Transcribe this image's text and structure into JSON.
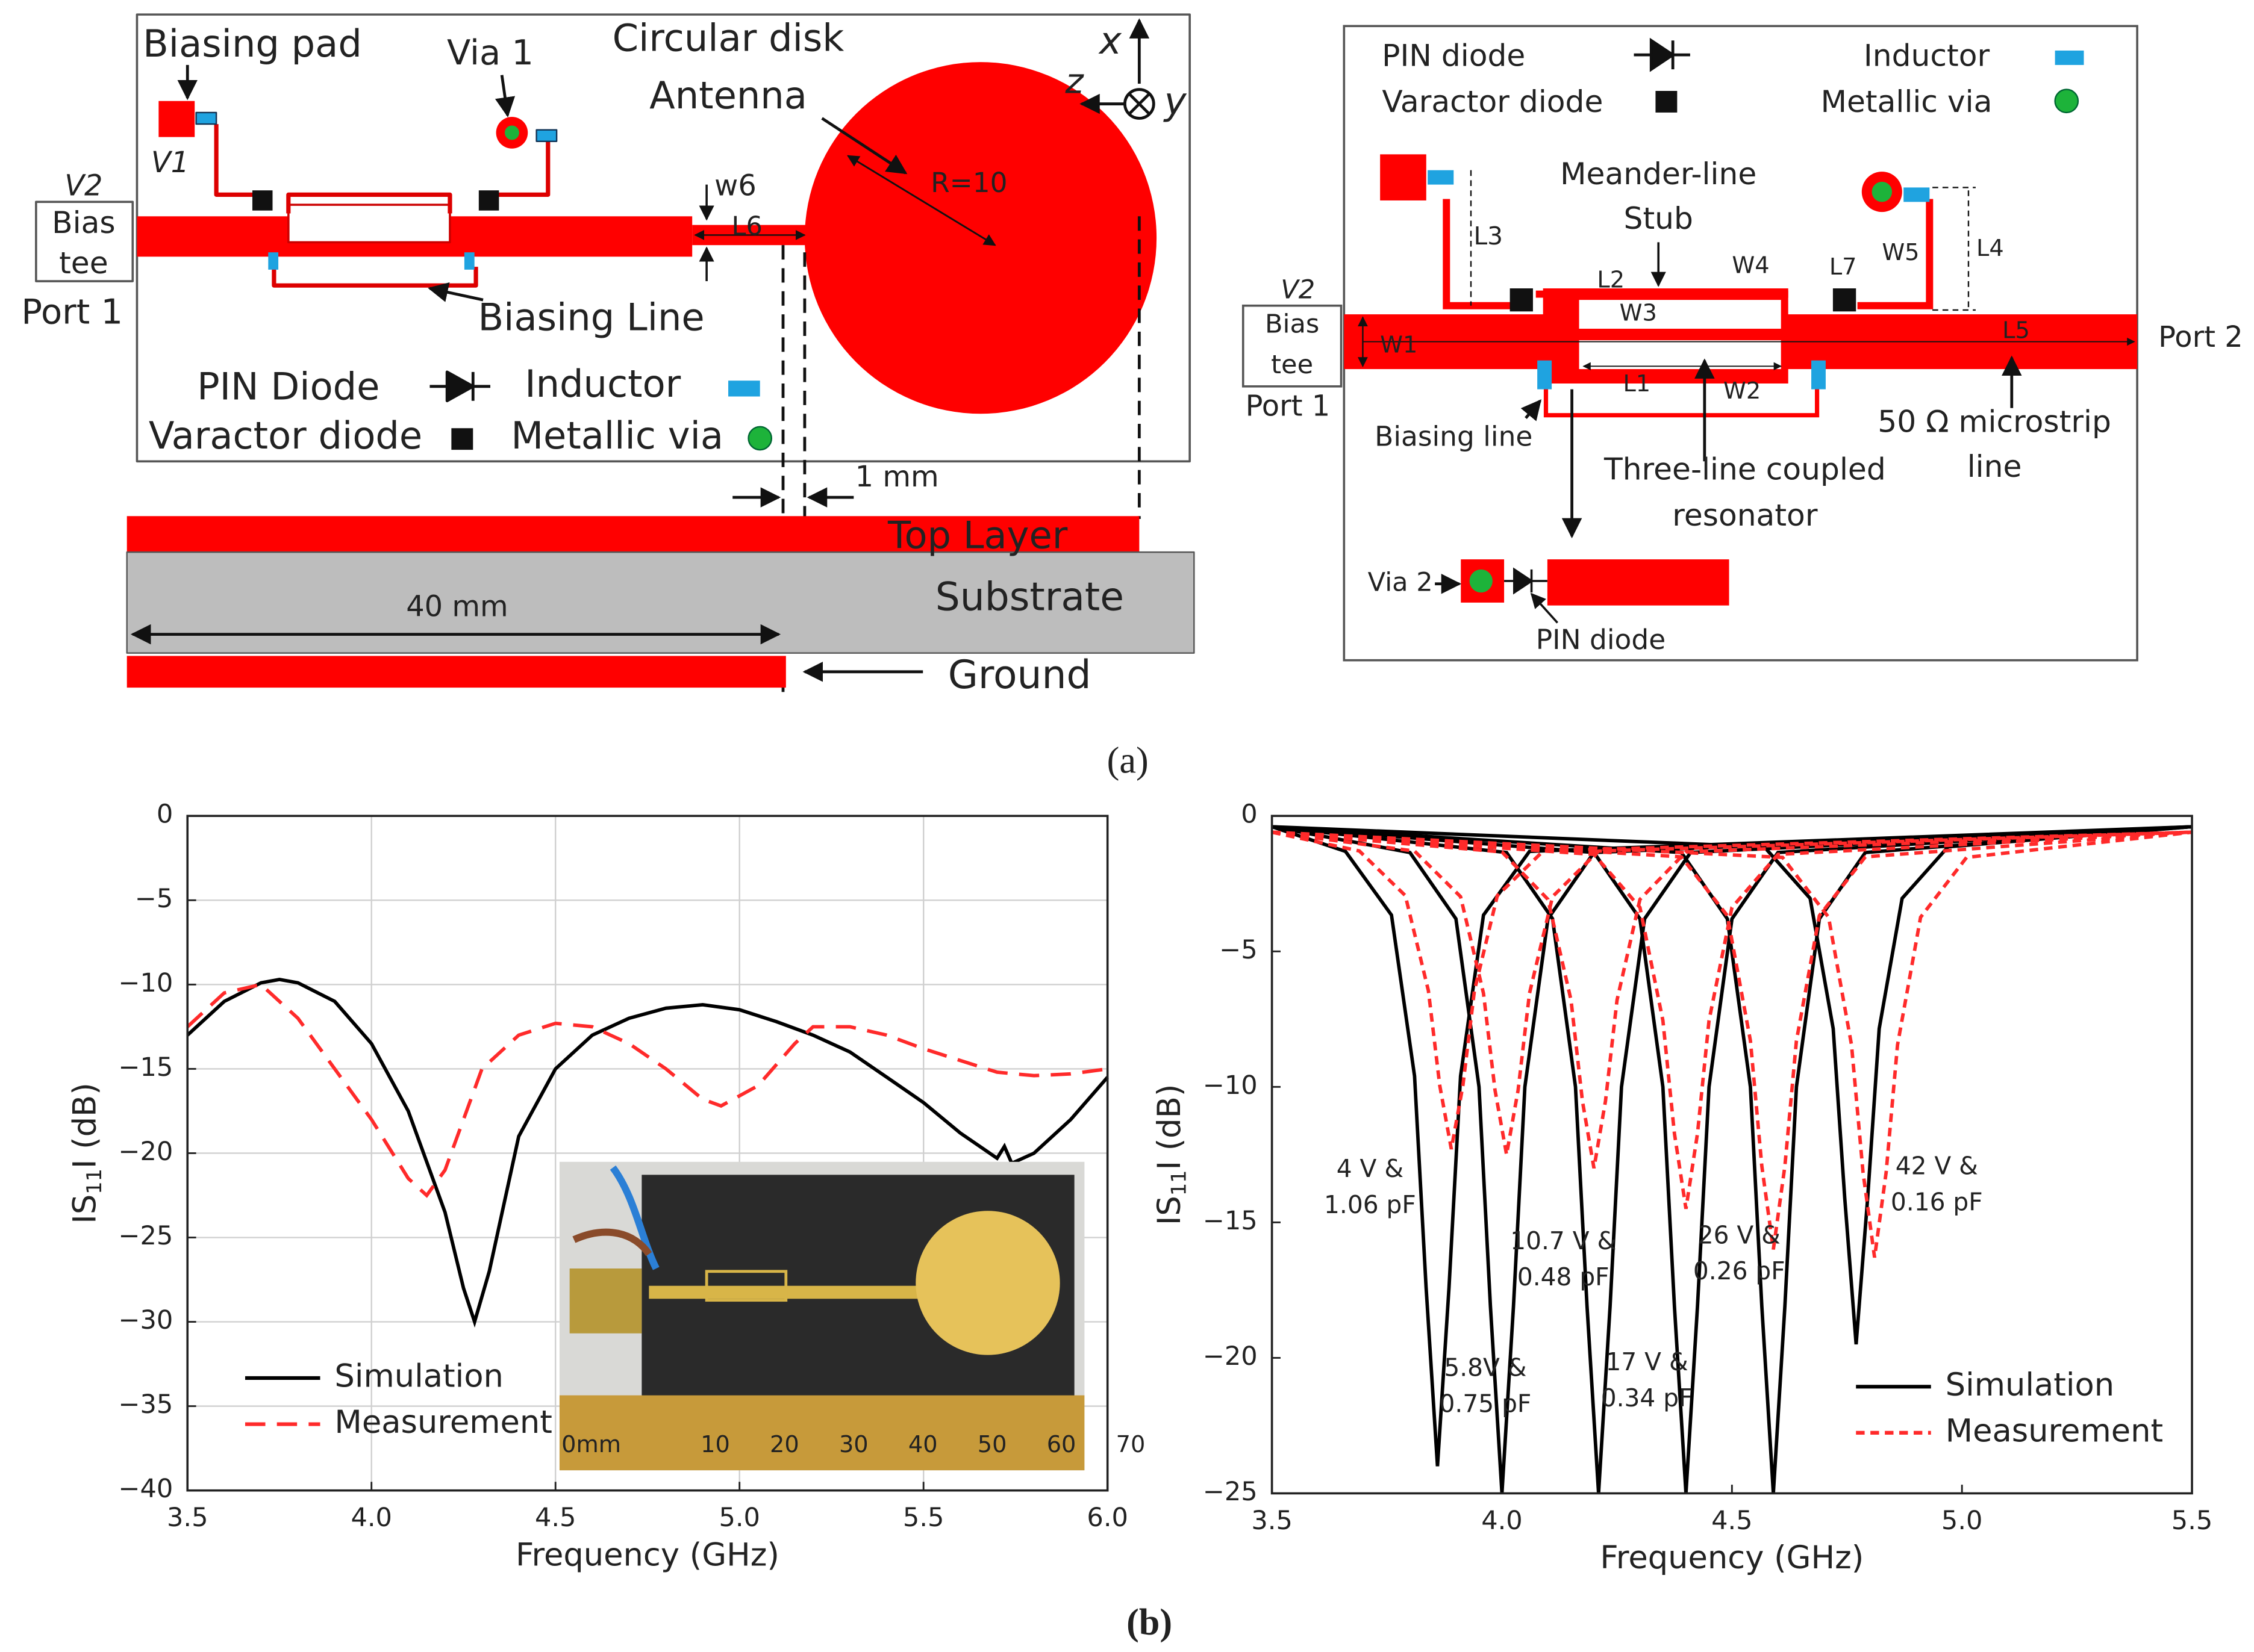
{
  "panel_a": {
    "label": "(a)",
    "left": {
      "biasing_pad": "Biasing pad",
      "via_1": "Via 1",
      "circular_disk": "Circular disk",
      "antenna": "Antenna",
      "axis_x": "x",
      "axis_z": "z",
      "axis_y": "y",
      "v1": "V1",
      "v2": "V2",
      "bias": "Bias",
      "tee": "tee",
      "port_1": "Port 1",
      "w6": "w6",
      "l6": "L6",
      "r": "R=10",
      "biasing_line": "Biasing Line",
      "pin_diode": "PIN Diode",
      "inductor": "Inductor",
      "varactor_diode": "Varactor diode",
      "metallic_via": "Metallic via",
      "one_mm": "1 mm",
      "top_layer": "Top Layer",
      "substrate": "Substrate",
      "forty_mm": "40 mm",
      "ground": "Ground"
    },
    "right": {
      "pin_diode": "PIN diode",
      "varactor_diode": "Varactor diode",
      "inductor": "Inductor",
      "metallic_via": "Metallic via",
      "meander_line": "Meander-line",
      "stub": "Stub",
      "l3": "L3",
      "l2": "L2",
      "w4": "W4",
      "l7": "L7",
      "w5": "W5",
      "l4": "L4",
      "w3": "W3",
      "w1": "W1",
      "l5": "L5",
      "l1": "L1",
      "w2": "W2",
      "v2": "V2",
      "bias": "Bias",
      "tee": "tee",
      "port_1": "Port 1",
      "port_2": "Port 2",
      "biasing_line": "Biasing line",
      "three_line": "Three-line coupled",
      "resonator": "resonator",
      "microstrip_50": "50 Ω microstrip",
      "line": "line",
      "via_2": "Via 2",
      "pin_diode_2": "PIN diode"
    }
  },
  "panel_b_label": "(b)",
  "inset": {
    "ruler_labels": [
      "0mm",
      "10",
      "20",
      "30",
      "40",
      "50",
      "60",
      "70"
    ]
  },
  "chart_data": [
    {
      "type": "line",
      "x_label": "Frequency (GHz)",
      "y_label": {
        "main": "IS",
        "sub": "11",
        "tail": "I (dB)"
      },
      "xlim": [
        3.5,
        6.0
      ],
      "ylim": [
        -40,
        0
      ],
      "xticks": [
        3.5,
        {
          "value": 4.0,
          "label": "4.0"
        },
        4.5,
        {
          "value": 5.0,
          "label": "5.0"
        },
        5.5,
        {
          "value": 6.0,
          "label": "6.0"
        }
      ],
      "yticks": [
        0,
        {
          "value": -5,
          "label": "−5"
        },
        {
          "value": -10,
          "label": "−10"
        },
        {
          "value": -15,
          "label": "−15"
        },
        {
          "value": -20,
          "label": "−20"
        },
        {
          "value": -25,
          "label": "−25"
        },
        {
          "value": -30,
          "label": "−30"
        },
        {
          "value": -35,
          "label": "−35"
        },
        {
          "value": -40,
          "label": "−40"
        }
      ],
      "grid": true,
      "legend": "lower left",
      "series": [
        {
          "name": "Simulation",
          "color": "#000000",
          "dash": "none",
          "x": [
            3.5,
            3.6,
            3.7,
            3.75,
            3.8,
            3.9,
            4.0,
            4.1,
            4.2,
            4.25,
            4.28,
            4.32,
            4.4,
            4.5,
            4.6,
            4.7,
            4.8,
            4.9,
            5.0,
            5.1,
            5.2,
            5.3,
            5.4,
            5.5,
            5.6,
            5.7,
            5.72,
            5.74,
            5.8,
            5.9,
            6.0
          ],
          "values": [
            -13,
            -11,
            -9.9,
            -9.7,
            -9.9,
            -11,
            -13.5,
            -17.5,
            -23.5,
            -28,
            -30,
            -27,
            -19,
            -15,
            -13,
            -12,
            -11.4,
            -11.2,
            -11.5,
            -12.2,
            -13,
            -14,
            -15.5,
            -17,
            -18.8,
            -20.3,
            -19.6,
            -20.6,
            -20,
            -18,
            -15.5
          ]
        },
        {
          "name": "Measurement",
          "color": "#ff2a2a",
          "dash": "14 8",
          "x": [
            3.5,
            3.6,
            3.7,
            3.8,
            3.9,
            4.0,
            4.1,
            4.15,
            4.2,
            4.25,
            4.3,
            4.4,
            4.5,
            4.6,
            4.7,
            4.8,
            4.9,
            4.95,
            5.05,
            5.15,
            5.2,
            5.3,
            5.4,
            5.5,
            5.6,
            5.7,
            5.8,
            5.9,
            6.0
          ],
          "values": [
            -12.5,
            -10.5,
            -10,
            -12,
            -15,
            -18,
            -21.5,
            -22.5,
            -21,
            -18,
            -15,
            -13,
            -12.3,
            -12.5,
            -13.5,
            -15,
            -16.8,
            -17.2,
            -16,
            -13.5,
            -12.5,
            -12.5,
            -13,
            -13.8,
            -14.5,
            -15.2,
            -15.4,
            -15.3,
            -15
          ]
        }
      ]
    },
    {
      "type": "multiline",
      "x_label": "Frequency (GHz)",
      "y_label": {
        "main": "IS",
        "sub": "11",
        "tail": "I (dB)"
      },
      "xlim": [
        3.5,
        5.5
      ],
      "ylim": [
        -25,
        0
      ],
      "xticks": [
        3.5,
        {
          "value": 4.0,
          "label": "4.0"
        },
        4.5,
        {
          "value": 5.0,
          "label": "5.0"
        },
        5.5
      ],
      "yticks": [
        0,
        {
          "value": -5,
          "label": "−5"
        },
        {
          "value": -10,
          "label": "−10"
        },
        {
          "value": -15,
          "label": "−15"
        },
        {
          "value": -20,
          "label": "−20"
        },
        {
          "value": -25,
          "label": "−25"
        }
      ],
      "grid": false,
      "legend": "lower right",
      "annotations": [
        {
          "lines": [
            "4 V &",
            "1.06 pF"
          ]
        },
        {
          "lines": [
            "5.8V &",
            "0.75 pF"
          ]
        },
        {
          "lines": [
            "10.7 V &",
            "0.48 pF"
          ]
        },
        {
          "lines": [
            "17 V &",
            "0.34 pF"
          ]
        },
        {
          "lines": [
            "26 V &",
            "0.26 pF"
          ]
        },
        {
          "lines": [
            "42 V &",
            "0.16 pF"
          ]
        }
      ],
      "series": [
        {
          "name": "Simulation",
          "color": "#000000",
          "dash": "none",
          "curves": [
            {
              "x": [
                3.5,
                3.66,
                3.76,
                3.81,
                3.835,
                3.86,
                3.885,
                3.91,
                3.96,
                4.06,
                5.5
              ],
              "values": [
                -0.4,
                -1.31,
                -3.66,
                -9.6,
                -17.4,
                -24,
                -17.4,
                -9.6,
                -3.66,
                -1.31,
                -0.4
              ]
            },
            {
              "x": [
                3.5,
                3.8,
                3.9,
                3.95,
                3.975,
                4.0,
                4.025,
                4.05,
                4.1,
                4.2,
                5.5
              ],
              "values": [
                -0.4,
                -1.35,
                -3.8,
                -10,
                -18.09,
                -25,
                -18.09,
                -10,
                -3.8,
                -1.35,
                -0.4
              ]
            },
            {
              "x": [
                3.5,
                4.01,
                4.11,
                4.16,
                4.185,
                4.21,
                4.235,
                4.26,
                4.31,
                4.41,
                5.5
              ],
              "values": [
                -0.4,
                -1.35,
                -3.8,
                -10,
                -18.09,
                -25,
                -18.09,
                -10,
                -3.8,
                -1.35,
                -0.4
              ]
            },
            {
              "x": [
                3.5,
                4.2,
                4.3,
                4.35,
                4.375,
                4.4,
                4.425,
                4.45,
                4.5,
                4.6,
                5.5
              ],
              "values": [
                -0.4,
                -1.35,
                -3.8,
                -10,
                -18.09,
                -25,
                -18.09,
                -10,
                -3.8,
                -1.35,
                -0.4
              ]
            },
            {
              "x": [
                3.5,
                4.39,
                4.49,
                4.54,
                4.565,
                4.59,
                4.615,
                4.64,
                4.69,
                4.79,
                5.5
              ],
              "values": [
                -0.4,
                -1.35,
                -3.8,
                -10,
                -18.09,
                -25,
                -18.09,
                -10,
                -3.8,
                -1.35,
                -0.4
              ]
            },
            {
              "x": [
                3.5,
                4.57,
                4.67,
                4.72,
                4.745,
                4.77,
                4.795,
                4.82,
                4.87,
                4.97,
                5.5
              ],
              "values": [
                -0.4,
                -1.14,
                -3.04,
                -7.85,
                -14.1,
                -19.5,
                -14.1,
                -7.85,
                -3.04,
                -1.14,
                -0.4
              ]
            }
          ]
        },
        {
          "name": "Measurement",
          "color": "#ff2a2a",
          "dash": "6 4",
          "curves": [
            {
              "x": [
                3.5,
                3.69,
                3.79,
                3.84,
                3.865,
                3.89,
                3.915,
                3.94,
                3.99,
                4.09,
                5.5
              ],
              "values": [
                -0.6,
                -1.29,
                -2.94,
                -6.45,
                -9.96,
                -12.3,
                -9.96,
                -6.45,
                -2.94,
                -1.29,
                -0.6
              ]
            },
            {
              "x": [
                3.5,
                3.81,
                3.91,
                3.96,
                3.985,
                4.01,
                4.035,
                4.06,
                4.11,
                4.21,
                5.5
              ],
              "values": [
                -0.6,
                -1.3,
                -2.98,
                -6.55,
                -10.12,
                -12.5,
                -10.12,
                -6.55,
                -2.98,
                -1.3,
                -0.6
              ]
            },
            {
              "x": [
                3.5,
                4.0,
                4.1,
                4.15,
                4.175,
                4.2,
                4.225,
                4.25,
                4.3,
                4.4,
                5.5
              ],
              "values": [
                -0.6,
                -1.33,
                -3.08,
                -6.8,
                -10.52,
                -13,
                -10.52,
                -6.8,
                -3.08,
                -1.33,
                -0.6
              ]
            },
            {
              "x": [
                3.5,
                4.2,
                4.3,
                4.35,
                4.375,
                4.4,
                4.425,
                4.45,
                4.5,
                4.6,
                5.5
              ],
              "values": [
                -0.6,
                -1.42,
                -3.38,
                -7.55,
                -11.72,
                -14.5,
                -11.72,
                -7.55,
                -3.38,
                -1.42,
                -0.6
              ]
            },
            {
              "x": [
                3.5,
                4.39,
                4.49,
                4.54,
                4.565,
                4.59,
                4.615,
                4.64,
                4.69,
                4.79,
                5.5
              ],
              "values": [
                -0.6,
                -1.51,
                -3.68,
                -8.3,
                -12.92,
                -16,
                -12.92,
                -8.3,
                -3.68,
                -1.51,
                -0.6
              ]
            },
            {
              "x": [
                3.5,
                4.61,
                4.71,
                4.76,
                4.785,
                4.81,
                4.835,
                4.86,
                4.91,
                5.01,
                5.5
              ],
              "values": [
                -0.6,
                -1.53,
                -3.74,
                -8.45,
                -13.16,
                -16.3,
                -13.16,
                -8.45,
                -3.74,
                -1.53,
                -0.6
              ]
            }
          ]
        }
      ]
    }
  ]
}
